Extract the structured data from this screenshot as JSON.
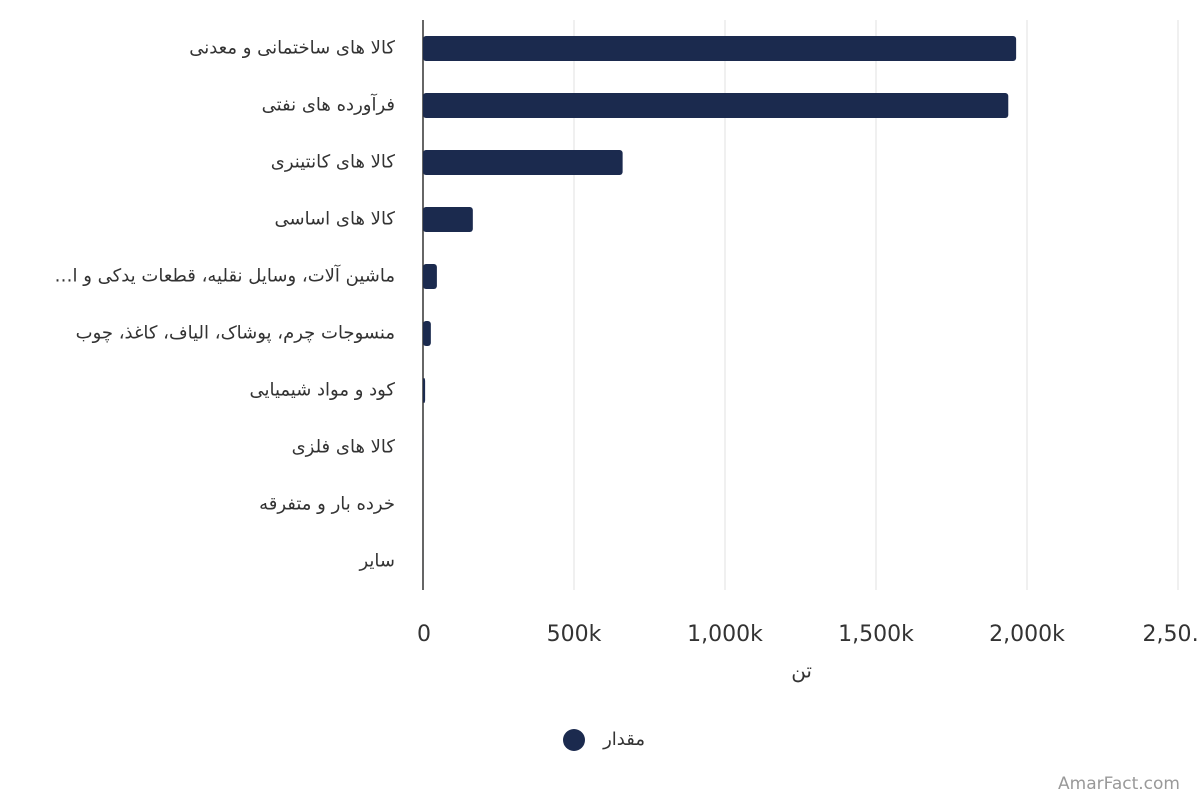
{
  "chart_data": {
    "type": "bar",
    "orientation": "horizontal",
    "categories": [
      "کالا های ساختمانی و معدنی",
      "فرآورده های نفتی",
      "کالا های کانتینری",
      "کالا های اساسی",
      "ماشین آلات، وسایل نقلیه، قطعات یدکی و ا…",
      "منسوجات چرم، پوشاک، الیاف، کاغذ، چوب",
      "کود و مواد شیمیایی",
      "کالا های فلزی",
      "خرده بار و متفرقه",
      "سایر"
    ],
    "series": [
      {
        "name": "مقدار",
        "color": "#1b2a4e",
        "values": [
          1964000,
          1938000,
          661000,
          165000,
          46000,
          26000,
          7000,
          500,
          200,
          100
        ]
      }
    ],
    "xlabel": "تن",
    "xlim": [
      0,
      2500000
    ],
    "xticks": [
      0,
      {
        "value": 500000,
        "label": "500k"
      },
      {
        "value": 1000000,
        "label": "1,000k"
      },
      {
        "value": 1500000,
        "label": "1,500k"
      },
      {
        "value": 2000000,
        "label": "2,000k"
      },
      {
        "value": 2500000,
        "label": "2,50…"
      }
    ],
    "grid": true,
    "legend": "bottom",
    "watermark": "AmarFact.com"
  }
}
